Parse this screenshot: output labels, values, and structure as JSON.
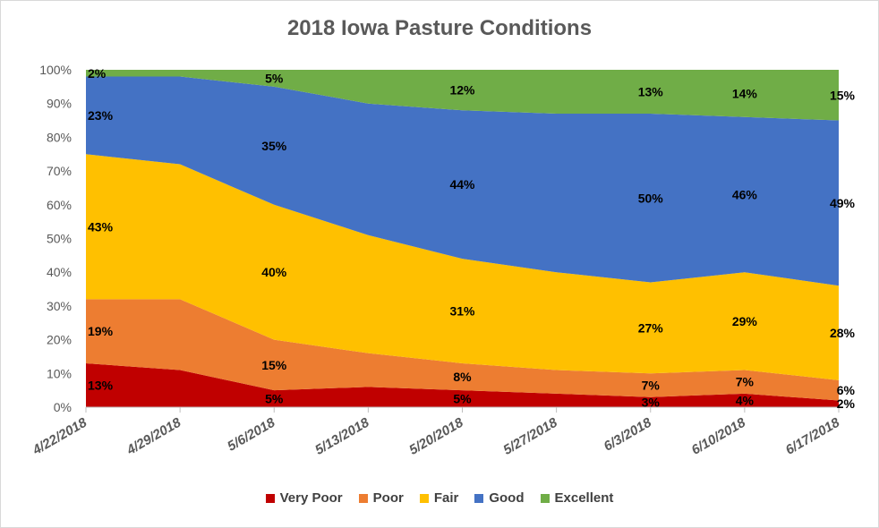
{
  "chart_data": {
    "type": "area",
    "stacked": true,
    "percent": true,
    "title": "2018 Iowa Pasture Conditions",
    "categories": [
      "4/22/2018",
      "4/29/2018",
      "5/6/2018",
      "5/13/2018",
      "5/20/2018",
      "5/27/2018",
      "6/3/2018",
      "6/10/2018",
      "6/17/2018"
    ],
    "y_ticks": [
      "0%",
      "10%",
      "20%",
      "30%",
      "40%",
      "50%",
      "60%",
      "70%",
      "80%",
      "90%",
      "100%"
    ],
    "ylim": [
      0,
      100
    ],
    "legend_position": "bottom",
    "series": [
      {
        "name": "Very Poor",
        "color": "#C00000",
        "values": [
          13,
          11,
          5,
          6,
          5,
          4,
          3,
          4,
          2
        ],
        "labels": [
          "13%",
          "",
          "5%",
          "",
          "5%",
          "",
          "3%",
          "4%",
          "2%"
        ]
      },
      {
        "name": "Poor",
        "color": "#ED7D31",
        "values": [
          19,
          21,
          15,
          10,
          8,
          7,
          7,
          7,
          6
        ],
        "labels": [
          "19%",
          "",
          "15%",
          "",
          "8%",
          "",
          "7%",
          "7%",
          "6%"
        ]
      },
      {
        "name": "Fair",
        "color": "#FFC000",
        "values": [
          43,
          40,
          40,
          35,
          31,
          29,
          27,
          29,
          28
        ],
        "labels": [
          "43%",
          "",
          "40%",
          "",
          "31%",
          "",
          "27%",
          "29%",
          "28%"
        ]
      },
      {
        "name": "Good",
        "color": "#4472C4",
        "values": [
          23,
          26,
          35,
          39,
          44,
          47,
          50,
          46,
          49
        ],
        "labels": [
          "23%",
          "",
          "35%",
          "",
          "44%",
          "",
          "50%",
          "46%",
          "49%"
        ]
      },
      {
        "name": "Excellent",
        "color": "#70AD47",
        "values": [
          2,
          2,
          5,
          10,
          12,
          13,
          13,
          14,
          15
        ],
        "labels": [
          "2%",
          "",
          "5%",
          "",
          "12%",
          "",
          "13%",
          "14%",
          "15%"
        ]
      }
    ]
  }
}
